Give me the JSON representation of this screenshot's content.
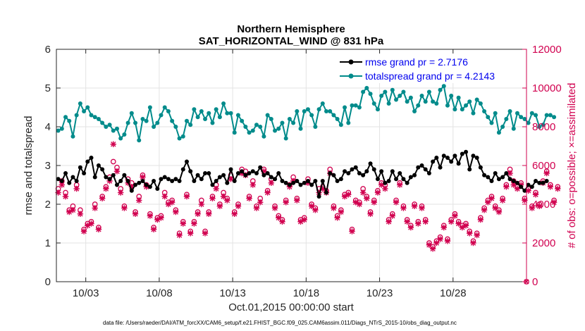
{
  "chart_data": {
    "type": "line",
    "title_line1": "Northern Hemisphere",
    "title_line2": "SAT_HORIZONTAL_WIND @ 831 hPa",
    "xlabel": "Oct.01,2015 00:00:00 start",
    "ylabel_left": "rmse and totalspread",
    "ylabel_right": "# of obs: o=possible; ×=assimilated",
    "footer": "data file: /Users/raeder/DAI/ATM_forcXX/CAM6_setup/f.e21.FHIST_BGC.f09_025.CAM6assim.011/Diags_NTrS_2015-10/obs_diag_output.nc",
    "xlim": [
      1,
      33
    ],
    "ylim_left": [
      0,
      6
    ],
    "ylim_right": [
      0,
      12000
    ],
    "x_ticks": [
      3,
      8,
      13,
      18,
      23,
      28
    ],
    "x_tick_labels": [
      "10/03",
      "10/08",
      "10/13",
      "10/18",
      "10/23",
      "10/28"
    ],
    "y_left_ticks": [
      "0",
      "1",
      "2",
      "3",
      "4",
      "5",
      "6"
    ],
    "y_right_ticks": [
      "0",
      "2000",
      "4000",
      "6000",
      "8000",
      "10000",
      "12000"
    ],
    "legend": {
      "rmse_label": "rmse grand pr = 2.7176",
      "spread_label": "totalspread grand pr = 4.2143"
    },
    "colors": {
      "rmse": "#000000",
      "spread": "#008b8b",
      "obs": "#d1004f",
      "grid": "#e3e3e3"
    },
    "x_start": 1.125,
    "x_step": 0.25,
    "series": [
      {
        "name": "rmse",
        "values": [
          2.65,
          2.6,
          2.8,
          2.55,
          2.7,
          2.6,
          2.95,
          2.8,
          3.1,
          3.2,
          2.7,
          3.0,
          2.9,
          2.7,
          2.65,
          2.75,
          2.5,
          2.6,
          2.75,
          2.6,
          2.35,
          2.5,
          2.55,
          2.6,
          2.5,
          2.45,
          2.6,
          2.4,
          2.65,
          2.7,
          2.65,
          2.6,
          2.65,
          2.6,
          2.9,
          3.1,
          2.85,
          2.6,
          2.75,
          2.65,
          2.8,
          2.8,
          2.5,
          2.6,
          2.7,
          2.75,
          2.55,
          2.9,
          2.6,
          2.8,
          2.85,
          2.75,
          2.8,
          2.85,
          2.8,
          2.95,
          2.75,
          2.8,
          2.7,
          2.65,
          2.8,
          2.6,
          2.55,
          2.5,
          2.55,
          2.6,
          2.5,
          2.55,
          2.6,
          2.5,
          2.6,
          2.2,
          2.6,
          2.3,
          2.8,
          2.75,
          2.6,
          2.65,
          2.85,
          2.8,
          2.9,
          2.95,
          2.8,
          2.75,
          2.85,
          3.05,
          2.9,
          2.65,
          2.85,
          2.55,
          2.6,
          2.85,
          2.65,
          2.8,
          2.65,
          2.55,
          2.7,
          2.75,
          2.95,
          3.0,
          2.9,
          2.8,
          3.1,
          3.2,
          2.95,
          3.25,
          3.2,
          3.1,
          3.25,
          3.05,
          3.3,
          3.35,
          2.9,
          3.25,
          3.2,
          2.95,
          2.75,
          2.7,
          2.6,
          2.8,
          2.65,
          2.7,
          2.8,
          2.65,
          2.6,
          2.55,
          2.45,
          2.35,
          2.5,
          2.45,
          2.6,
          2.55,
          2.55,
          2.6
        ]
      },
      {
        "name": "totalspread",
        "values": [
          3.9,
          3.95,
          4.25,
          4.15,
          3.75,
          4.3,
          4.6,
          4.4,
          4.5,
          4.3,
          4.25,
          4.2,
          4.1,
          4.0,
          4.05,
          3.9,
          3.95,
          3.7,
          3.8,
          4.1,
          4.35,
          4.1,
          3.65,
          4.2,
          4.15,
          4.5,
          4.0,
          4.1,
          4.3,
          4.5,
          4.4,
          4.15,
          4.0,
          3.7,
          3.75,
          4.15,
          4.05,
          4.45,
          4.25,
          4.4,
          4.2,
          4.35,
          4.1,
          4.45,
          4.25,
          4.6,
          4.35,
          4.35,
          3.85,
          4.3,
          4.15,
          4.0,
          3.85,
          3.9,
          4.05,
          4.0,
          3.75,
          4.3,
          4.2,
          3.9,
          3.95,
          4.1,
          3.7,
          4.2,
          4.1,
          4.4,
          3.95,
          4.4,
          4.45,
          4.3,
          4.0,
          4.45,
          4.6,
          4.4,
          4.4,
          4.3,
          4.2,
          4.05,
          4.5,
          4.1,
          4.55,
          4.55,
          4.5,
          4.9,
          5.0,
          4.85,
          4.6,
          4.45,
          4.8,
          4.9,
          4.6,
          4.95,
          4.7,
          4.8,
          4.9,
          4.65,
          4.75,
          4.4,
          4.55,
          4.8,
          4.65,
          4.9,
          4.65,
          4.6,
          4.95,
          5.05,
          4.55,
          4.8,
          4.45,
          4.75,
          4.45,
          4.55,
          4.65,
          4.35,
          4.7,
          4.6,
          4.4,
          4.25,
          4.1,
          4.35,
          3.85,
          4.0,
          4.2,
          4.4,
          3.95,
          4.35,
          4.25,
          4.2,
          4.1,
          4.35,
          4.3,
          4.0,
          4.05,
          4.3,
          4.3,
          4.25
        ]
      },
      {
        "name": "obs_possible",
        "values": [
          4800,
          5200,
          4600,
          3700,
          3900,
          5000,
          3700,
          2700,
          3000,
          3100,
          4000,
          2800,
          4400,
          4900,
          5400,
          6200,
          5900,
          4800,
          3900,
          5300,
          5100,
          3600,
          4400,
          5500,
          5000,
          3500,
          2800,
          3300,
          3400,
          4600,
          4100,
          4200,
          3700,
          2500,
          3100,
          4500,
          2600,
          3100,
          3600,
          4200,
          2600,
          3600,
          4400,
          5000,
          4000,
          4600,
          4300,
          5500,
          3600,
          4000,
          5800,
          5700,
          4400,
          5200,
          3900,
          4300,
          5800,
          4700,
          5300,
          3900,
          3400,
          3200,
          4200,
          5000,
          5400,
          4300,
          3200,
          3300,
          5300,
          4000,
          3800,
          4800,
          4900,
          4700,
          5800,
          3900,
          3400,
          3700,
          4500,
          4600,
          2700,
          4200,
          4100,
          4800,
          4400,
          3600,
          4200,
          4700,
          5100,
          5000,
          3200,
          3500,
          4200,
          5100,
          3900,
          3200,
          2900,
          4000,
          3100,
          3900,
          3200,
          2000,
          1800,
          2100,
          2300,
          2900,
          2200,
          3200,
          3500,
          3100,
          2900,
          3000,
          2600,
          2100,
          2500,
          3300,
          3800,
          4200,
          4400,
          3900,
          3700,
          4300,
          5000,
          5800,
          5200,
          4900,
          5100,
          4300,
          4800,
          3900,
          4600,
          4000,
          5200,
          5700,
          5000,
          4200,
          4900
        ]
      },
      {
        "name": "obs_assimilated",
        "values": [
          4600,
          5000,
          4400,
          3600,
          3700,
          4800,
          3500,
          2600,
          2900,
          3000,
          3800,
          2700,
          4300,
          4800,
          5200,
          7100,
          5700,
          4600,
          3800,
          5100,
          4900,
          3500,
          4200,
          5400,
          4900,
          3400,
          2700,
          3200,
          3300,
          4400,
          4000,
          4100,
          3600,
          2400,
          3000,
          4400,
          2500,
          3000,
          3500,
          4000,
          2500,
          3500,
          4300,
          4800,
          3900,
          4400,
          4200,
          5300,
          3500,
          3900,
          5600,
          5500,
          4300,
          5000,
          3800,
          4100,
          5700,
          4600,
          5100,
          3800,
          3300,
          3100,
          4100,
          4900,
          5200,
          4200,
          3100,
          3200,
          5100,
          3900,
          3700,
          4600,
          4800,
          4600,
          5600,
          3800,
          3300,
          3600,
          4400,
          4500,
          2600,
          4100,
          4000,
          4600,
          4300,
          3500,
          4100,
          4600,
          5000,
          4800,
          3100,
          3400,
          4100,
          5000,
          3800,
          3100,
          2800,
          3900,
          3000,
          3800,
          3100,
          1900,
          1700,
          2000,
          2200,
          2800,
          2100,
          3100,
          3400,
          3000,
          2800,
          2900,
          2500,
          2000,
          2400,
          3200,
          3700,
          4100,
          4300,
          3800,
          3600,
          4200,
          4900,
          5600,
          5000,
          4800,
          5000,
          4200,
          4700,
          3800,
          4500,
          3900,
          5100,
          5600,
          4900,
          4100,
          4800
        ]
      }
    ],
    "tail_point_possible": {
      "x": 33,
      "value": 0
    }
  }
}
